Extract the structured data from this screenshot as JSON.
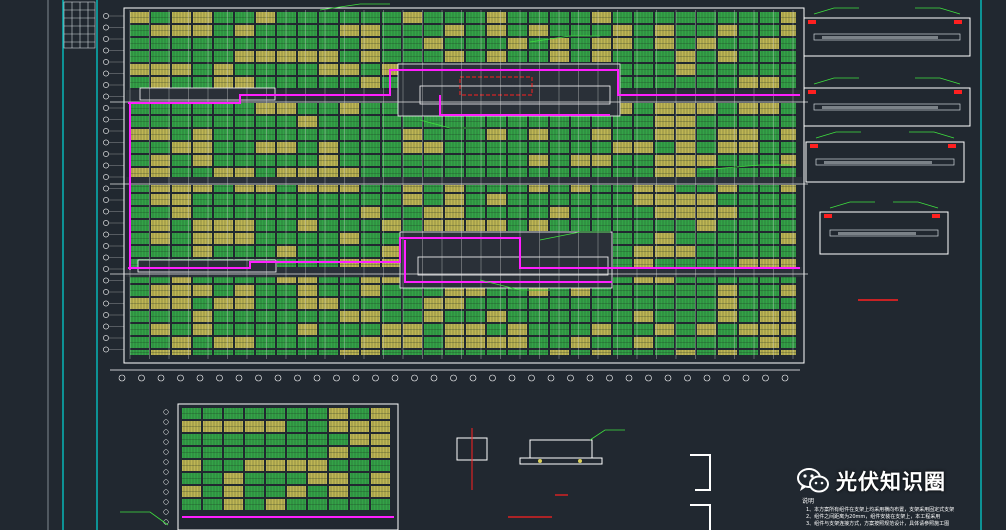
{
  "app": {
    "type": "CAD drawing viewer"
  },
  "drawing": {
    "background_color": "#212830",
    "colors": {
      "frame": "#00d8d8",
      "grid_line": "#e6e6e6",
      "panel_green": "#35b04a",
      "panel_yellow": "#d9cf5a",
      "road_magenta": "#ff1fff",
      "annotation_green": "#3fe03f",
      "red_mark": "#ff2020",
      "dimension_white": "#ffffff"
    },
    "notes_heading": "说明",
    "notes_lines": [
      "1、本方案所有组件在支架上均采用横向布置，支架采用固定式支架",
      "2、组件之间距离为20mm，组件安装在支架上，本工程采用",
      "3、组件与支架连接方式，方案按照规范设计，具体请参照施工图"
    ]
  },
  "watermark": {
    "text": "光伏知识圈",
    "icon": "wechat-icon"
  }
}
